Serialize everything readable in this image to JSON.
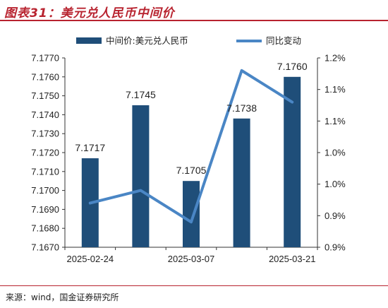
{
  "header": {
    "title": "图表31：美元兑人民币中间价"
  },
  "footer": {
    "source": "来源：wind，国金证券研究所"
  },
  "chart_data": {
    "type": "bar+line",
    "title": "美元兑人民币中间价",
    "categories": [
      "2025-02-24",
      "",
      "2025-03-07",
      "",
      "2025-03-21"
    ],
    "x_tick_labels": [
      "2025-02-24",
      "2025-03-07",
      "2025-03-21"
    ],
    "series": [
      {
        "name": "中间价:美元兑人民币",
        "type": "bar",
        "axis": "left",
        "values": [
          7.1717,
          7.1745,
          7.1705,
          7.1738,
          7.176
        ],
        "color": "#1f4e79",
        "data_labels": [
          "7.1717",
          "7.1745",
          "7.1705",
          "7.1738",
          "7.1760"
        ]
      },
      {
        "name": "同比变动",
        "type": "line",
        "axis": "right",
        "values": [
          0.97,
          0.99,
          0.94,
          1.18,
          1.13
        ],
        "color": "#4a86c5"
      }
    ],
    "y_left": {
      "min": 7.167,
      "max": 7.177,
      "step": 0.001,
      "ticks": [
        "7.1770",
        "7.1760",
        "7.1750",
        "7.1740",
        "7.1730",
        "7.1720",
        "7.1710",
        "7.1700",
        "7.1690",
        "7.1680",
        "7.1670"
      ]
    },
    "y_right": {
      "min": 0.9,
      "max": 1.2,
      "step": 0.05,
      "ticks": [
        "1.2%",
        "1.1%",
        "1.1%",
        "1.0%",
        "1.0%",
        "0.9%",
        "0.9%"
      ]
    },
    "legend": "top"
  }
}
